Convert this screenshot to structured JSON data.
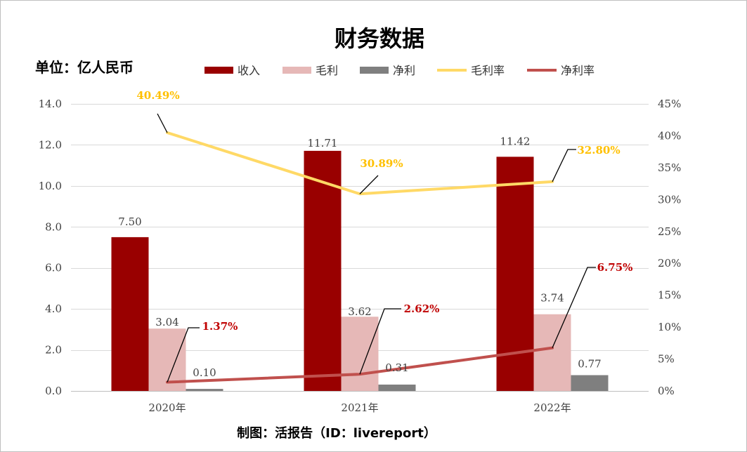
{
  "footer": "制图：活报告（ID：livereport）",
  "chart_data": {
    "type": "bar",
    "title": "财务数据",
    "ylabel": "单位：亿人民币",
    "categories": [
      "2020年",
      "2021年",
      "2022年"
    ],
    "series": [
      {
        "name": "收入",
        "type": "bar",
        "axis": "left",
        "values": [
          7.5,
          11.71,
          11.42
        ],
        "color": "#990000"
      },
      {
        "name": "毛利",
        "type": "bar",
        "axis": "left",
        "values": [
          3.04,
          3.62,
          3.74
        ],
        "color": "#e6b8b7"
      },
      {
        "name": "净利",
        "type": "bar",
        "axis": "left",
        "values": [
          0.1,
          0.31,
          0.77
        ],
        "color": "#7f7f7f"
      },
      {
        "name": "毛利率",
        "type": "line",
        "axis": "right",
        "values": [
          40.49,
          30.89,
          32.8
        ],
        "color": "#ffd966",
        "label_color": "#ffc000"
      },
      {
        "name": "净利率",
        "type": "line",
        "axis": "right",
        "values": [
          1.37,
          2.62,
          6.75
        ],
        "color": "#c0504d",
        "label_color": "#c00000"
      }
    ],
    "y_left": {
      "range": [
        0,
        14
      ],
      "step": 2
    },
    "y_right": {
      "range": [
        0,
        45
      ],
      "step": 5,
      "unit": "%"
    },
    "grid": true,
    "legend_position": "top"
  }
}
